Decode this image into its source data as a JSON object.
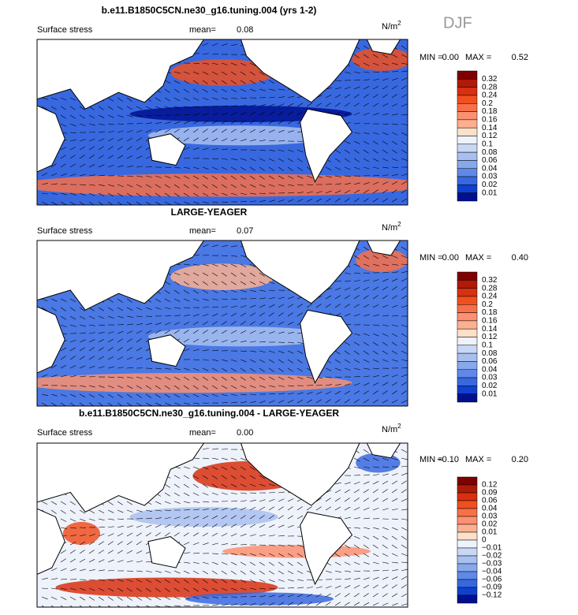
{
  "season": "DJF",
  "panels": [
    {
      "title": "b.e11.B1850C5CN.ne30_g16.tuning.004 (yrs 1-2)",
      "field": "Surface stress",
      "mean_label": "mean=",
      "mean": "0.08",
      "units": "N/m",
      "units_exp": "2",
      "min_label": "MIN =",
      "min": "0.00",
      "max_label": "MAX =",
      "max": "0.52",
      "colorbar": {
        "labels": [
          "0.32",
          "0.28",
          "0.24",
          "0.2",
          "0.18",
          "0.16",
          "0.14",
          "0.12",
          "0.1",
          "0.08",
          "0.06",
          "0.04",
          "0.03",
          "0.02",
          "0.01"
        ]
      }
    },
    {
      "title": "LARGE-YEAGER",
      "field": "Surface stress",
      "mean_label": "mean=",
      "mean": "0.07",
      "units": "N/m",
      "units_exp": "2",
      "min_label": "MIN =",
      "min": "0.00",
      "max_label": "MAX =",
      "max": "0.40",
      "colorbar": {
        "labels": [
          "0.32",
          "0.28",
          "0.24",
          "0.2",
          "0.18",
          "0.16",
          "0.14",
          "0.12",
          "0.1",
          "0.08",
          "0.06",
          "0.04",
          "0.03",
          "0.02",
          "0.01"
        ]
      }
    },
    {
      "title": "b.e11.B1850C5CN.ne30_g16.tuning.004 - LARGE-YEAGER",
      "field": "Surface stress",
      "mean_label": "mean=",
      "mean": "0.00",
      "units": "N/m",
      "units_exp": "2",
      "min_label": "MIN =",
      "min": "−0.10",
      "max_label": "MAX =",
      "max": "0.20",
      "colorbar": {
        "labels": [
          "0.12",
          "0.09",
          "0.06",
          "0.04",
          "0.03",
          "0.02",
          "0.01",
          "0",
          "−0.01",
          "−0.02",
          "−0.03",
          "−0.04",
          "−0.06",
          "−0.09",
          "−0.12"
        ]
      }
    }
  ]
}
